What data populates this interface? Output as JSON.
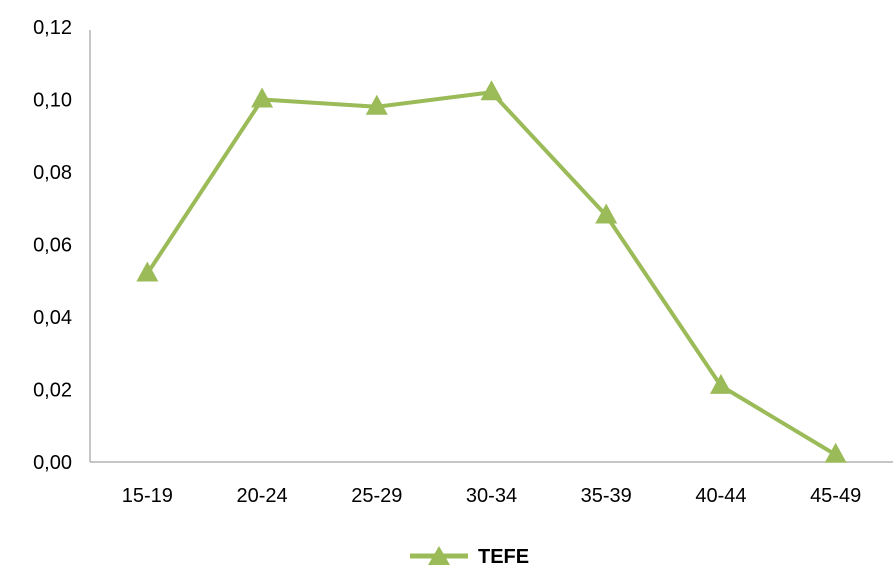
{
  "chart_data": {
    "type": "line",
    "categories": [
      "15-19",
      "20-24",
      "25-29",
      "30-34",
      "35-39",
      "40-44",
      "45-49"
    ],
    "series": [
      {
        "name": "TEFE",
        "values": [
          0.052,
          0.1,
          0.098,
          0.102,
          0.068,
          0.021,
          0.002
        ],
        "color": "#9bbb59",
        "marker": "triangle"
      }
    ],
    "y_ticks": [
      "0,00",
      "0,02",
      "0,04",
      "0,06",
      "0,08",
      "0,10",
      "0,12"
    ],
    "ylim": [
      0,
      0.12
    ],
    "grid": false,
    "legend_position": "bottom"
  }
}
